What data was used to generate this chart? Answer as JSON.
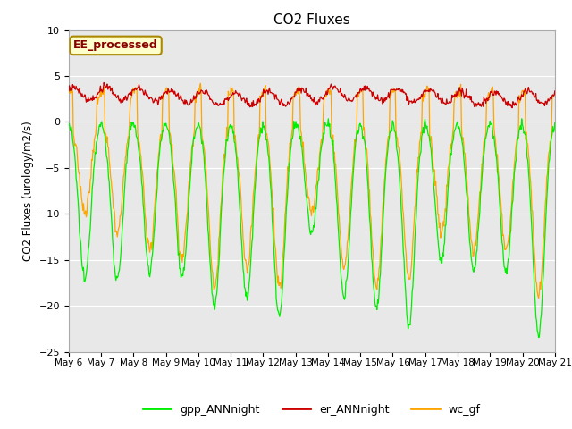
{
  "title": "CO2 Fluxes",
  "ylabel": "CO2 Fluxes (urology/m2/s)",
  "ylim": [
    -25,
    10
  ],
  "yticks": [
    -25,
    -20,
    -15,
    -10,
    -5,
    0,
    5,
    10
  ],
  "x_tick_labels": [
    "May 6",
    "May 7",
    "May 8",
    "May 9",
    "May 10",
    "May 11",
    "May 12",
    "May 13",
    "May 14",
    "May 15",
    "May 16",
    "May 17",
    "May 18",
    "May 19",
    "May 20",
    "May 21"
  ],
  "color_gpp": "#00ee00",
  "color_er": "#cc0000",
  "color_wc": "#ffa500",
  "legend_labels": [
    "gpp_ANNnight",
    "er_ANNnight",
    "wc_gf"
  ],
  "annotation_text": "EE_processed",
  "annotation_bg": "#ffffcc",
  "annotation_border": "#aa8800",
  "annotation_text_color": "#880000",
  "fig_bg": "#ffffff",
  "plot_bg": "#e8e8e8",
  "grid_color": "#ffffff",
  "days": 15,
  "n_points": 720
}
